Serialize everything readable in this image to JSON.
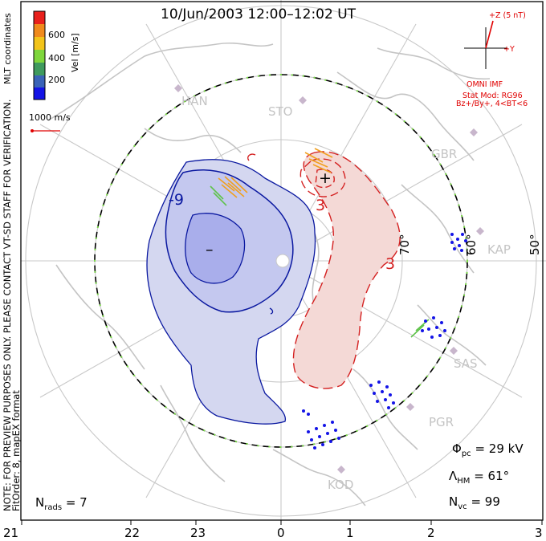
{
  "title": "10/Jun/2003 12:00–12:02 UT",
  "colorbar": {
    "label": "Vel [m/s]",
    "ticks": [
      "600",
      "400",
      "200"
    ],
    "colors": [
      "#e8201c",
      "#f08a1c",
      "#f3c41a",
      "#7fd63c",
      "#3f9a5e",
      "#3a63b8",
      "#1414e6"
    ]
  },
  "coord_label": "MLT coordinates",
  "scale_vector": "1000 m/s",
  "side_notes": {
    "preview": "NOTE: FOR PREVIEW PURPOSES ONLY. PLEASE CONTACT VT-SD STAFF FOR VERIFICATION.",
    "fit": "FitOrder: 8, mapEX format"
  },
  "imf": {
    "z_label": "+Z (5 nT)",
    "y_label": "+Y",
    "source": "OMNI IMF",
    "model": "Stat Mod: RG96",
    "condition": "Bz+/By+, 4<BT<6"
  },
  "stations": [
    "HAN",
    "STO",
    "GBR",
    "KAP",
    "SAS",
    "PGR",
    "KOD"
  ],
  "latitudes": [
    "70°",
    "60°",
    "50°"
  ],
  "contours": {
    "negative": "-9",
    "positive": "3",
    "neg_marker": "–",
    "pos_marker": "+"
  },
  "stats": {
    "phi_symbol": "Φ",
    "phi_sub": "pc",
    "phi_value": "= 29 kV",
    "lambda_symbol": "Λ",
    "lambda_sub": "HM",
    "lambda_value": "= 61°",
    "nvc_symbol": "N",
    "nvc_sub": "vc",
    "nvc_value": "= 99",
    "nrads_symbol": "N",
    "nrads_sub": "rads",
    "nrads_value": "= 7"
  },
  "mlt_axis": [
    "21",
    "22",
    "23",
    "0",
    "1",
    "2",
    "3"
  ],
  "colors": {
    "neg_fill": "#d4d7f0",
    "neg_core": "#a9aeeb",
    "neg_line": "#0a18a0",
    "pos_fill": "#f4d9d6",
    "pos_line": "#d42020",
    "grid": "#c8c8c8",
    "coast": "#c4c4c4",
    "hmb_green": "#7ee04a"
  }
}
